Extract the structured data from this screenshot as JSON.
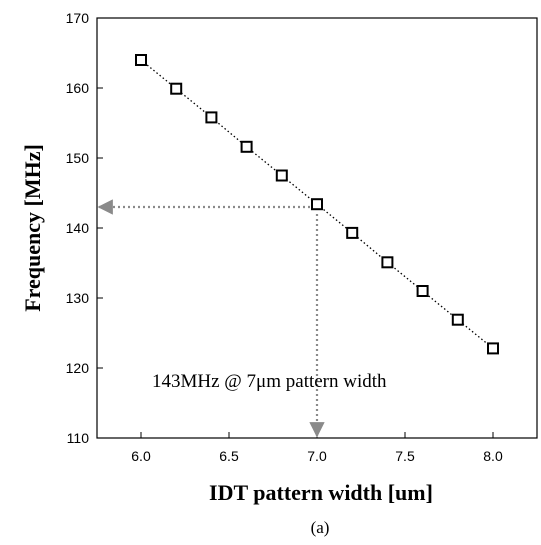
{
  "chart_data": {
    "type": "scatter",
    "xlabel": "IDT pattern width [um]",
    "ylabel": "Frequency [MHz]",
    "xlim": [
      5.75,
      8.25
    ],
    "ylim": [
      110,
      170
    ],
    "xticks": [
      "6.0",
      "6.5",
      "7.0",
      "7.5",
      "8.0"
    ],
    "yticks": [
      "110",
      "120",
      "130",
      "140",
      "150",
      "160",
      "170"
    ],
    "grid": false,
    "series": [
      {
        "marker": "open-square",
        "line": "dotted",
        "x": [
          6.0,
          6.2,
          6.4,
          6.6,
          6.8,
          7.0,
          7.2,
          7.4,
          7.6,
          7.8,
          8.0
        ],
        "y": [
          164.0,
          159.9,
          155.8,
          151.6,
          147.5,
          143.4,
          139.3,
          135.1,
          131.0,
          126.9,
          122.8
        ]
      }
    ],
    "reference": {
      "x": 7.0,
      "y": 143
    },
    "annotation": "143MHz @ 7μm pattern width",
    "caption": "(a)",
    "colors": {
      "marks": "#000000",
      "guide": "#8a8a8a"
    }
  }
}
